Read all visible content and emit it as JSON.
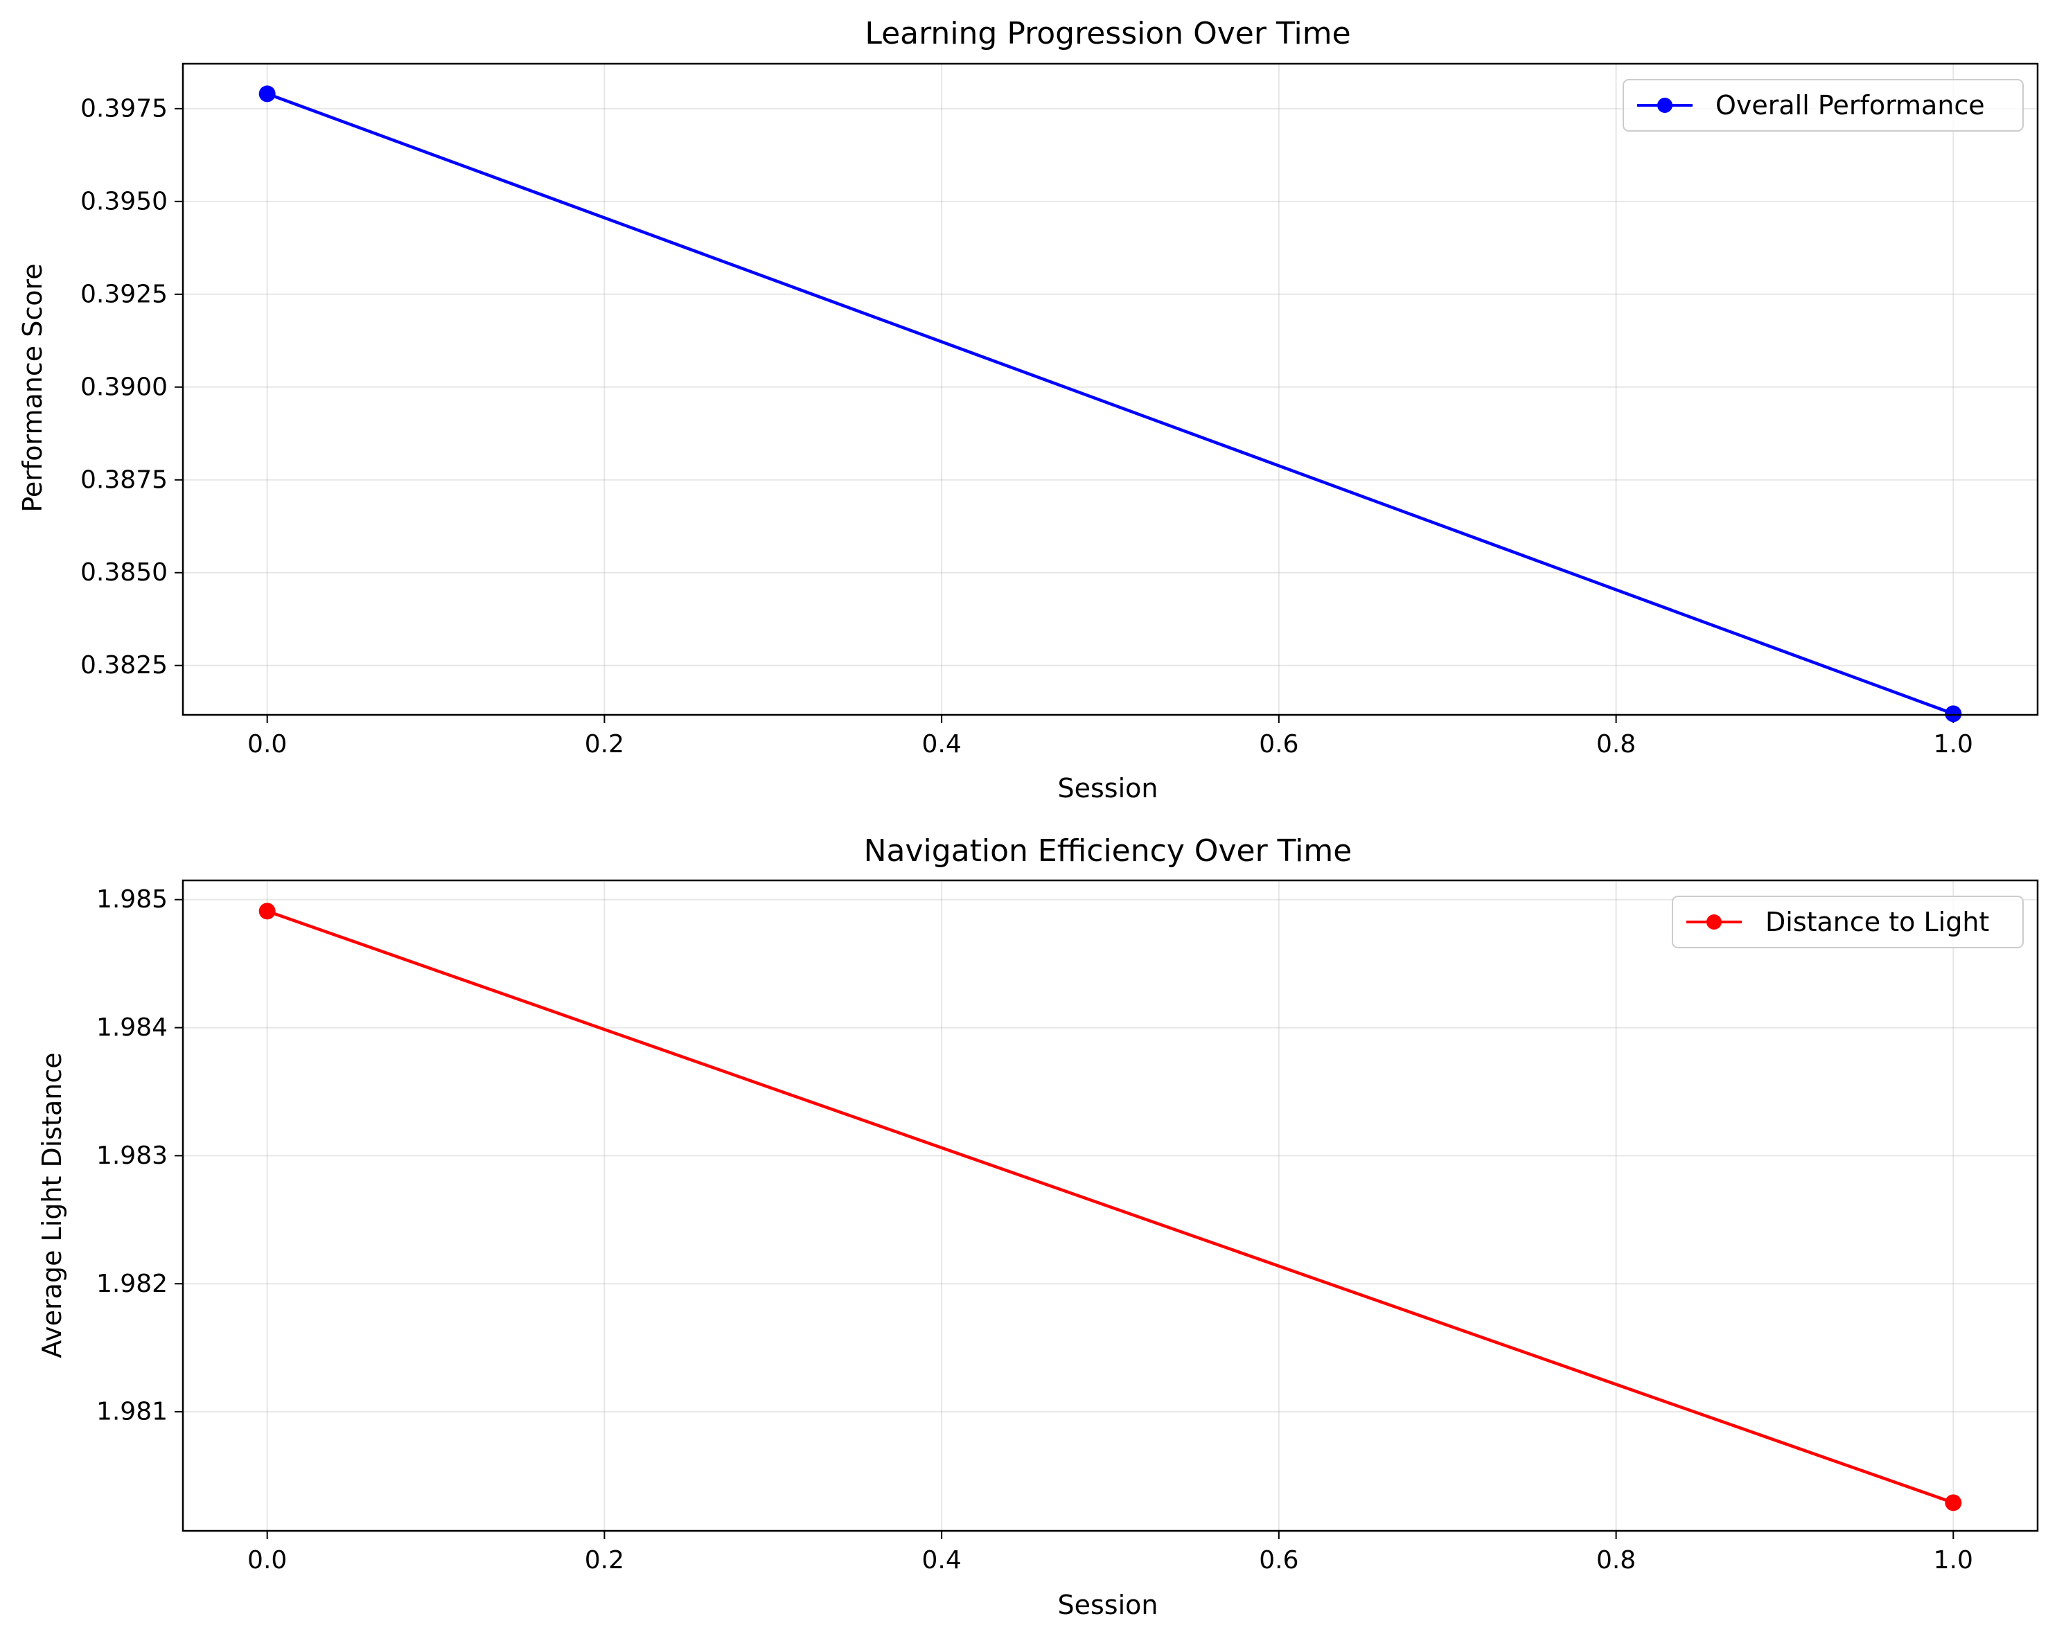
{
  "chart_data": [
    {
      "type": "line",
      "title": "Learning Progression Over Time",
      "xlabel": "Session",
      "ylabel": "Performance Score",
      "xlim": [
        -0.05,
        1.05
      ],
      "ylim": [
        0.38117,
        0.39871
      ],
      "xticks": [
        0.0,
        0.2,
        0.4,
        0.6,
        0.8,
        1.0
      ],
      "xtick_labels": [
        "0.0",
        "0.2",
        "0.4",
        "0.6",
        "0.8",
        "1.0"
      ],
      "yticks": [
        0.3825,
        0.385,
        0.3875,
        0.39,
        0.3925,
        0.395,
        0.3975
      ],
      "ytick_labels": [
        "0.3825",
        "0.3850",
        "0.3875",
        "0.3900",
        "0.3925",
        "0.3950",
        "0.3975"
      ],
      "grid": true,
      "legend_position": "top-right",
      "series": [
        {
          "name": "Overall Performance",
          "color": "#0000ff",
          "marker": "circle",
          "x": [
            0,
            1
          ],
          "y": [
            0.3979,
            0.3812
          ]
        }
      ]
    },
    {
      "type": "line",
      "title": "Navigation Efficiency Over Time",
      "xlabel": "Session",
      "ylabel": "Average Light Distance",
      "xlim": [
        -0.05,
        1.05
      ],
      "ylim": [
        1.98007,
        1.98515
      ],
      "xticks": [
        0.0,
        0.2,
        0.4,
        0.6,
        0.8,
        1.0
      ],
      "xtick_labels": [
        "0.0",
        "0.2",
        "0.4",
        "0.6",
        "0.8",
        "1.0"
      ],
      "yticks": [
        1.981,
        1.982,
        1.983,
        1.984,
        1.985
      ],
      "ytick_labels": [
        "1.981",
        "1.982",
        "1.983",
        "1.984",
        "1.985"
      ],
      "grid": true,
      "legend_position": "top-right",
      "series": [
        {
          "name": "Distance to Light",
          "color": "#ff0000",
          "marker": "circle",
          "x": [
            0,
            1
          ],
          "y": [
            1.98491,
            1.98029
          ]
        }
      ]
    }
  ]
}
